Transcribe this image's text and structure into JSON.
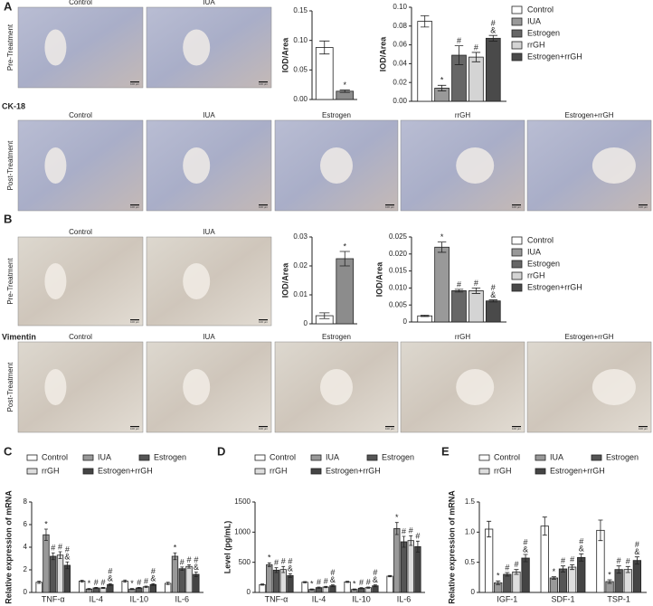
{
  "image_panels": {
    "A": {
      "letter": "A",
      "marker": "CK-18",
      "pre_label": "Pre-Treatment",
      "post_label": "Post-Treatment",
      "pre_images": [
        "Control",
        "IUA"
      ],
      "post_images": [
        "Control",
        "IUA",
        "Estrogen",
        "rrGH",
        "Estrogen+rrGH"
      ]
    },
    "B": {
      "letter": "B",
      "marker": "Vimentin",
      "pre_label": "Pre-Treatment",
      "post_label": "Post-Treatment",
      "pre_images": [
        "Control",
        "IUA"
      ],
      "post_images": [
        "Control",
        "IUA",
        "Estrogen",
        "rrGH",
        "Estrogen+rrGH"
      ]
    },
    "scale_bar": "100 μm"
  },
  "chart_data": [
    {
      "type": "bar",
      "ylabel": "IOD/Area",
      "categories": [
        null
      ],
      "series": [
        {
          "color": "#ffffff",
          "values": [
            0.088
          ],
          "errors": [
            0.011
          ],
          "annotations": [
            null
          ]
        },
        {
          "color": "#8c8c8c",
          "values": [
            0.014
          ],
          "errors": [
            0.002
          ],
          "annotations": [
            [
              "*"
            ]
          ]
        }
      ],
      "ylim": [
        0,
        0.15
      ],
      "yticks": [
        {
          "value": 0,
          "label": "0.00"
        },
        0.05,
        {
          "value": 0.1,
          "label": "0.10"
        },
        0.15
      ]
    },
    {
      "type": "bar",
      "ylabel": "IOD/Area",
      "categories": [
        null
      ],
      "legend": "right",
      "series": [
        {
          "name": "Control",
          "color": "#ffffff",
          "values": [
            0.085
          ],
          "errors": [
            0.006
          ],
          "annotations": [
            null
          ]
        },
        {
          "name": "IUA",
          "color": "#999999",
          "values": [
            0.014
          ],
          "errors": [
            0.003
          ],
          "annotations": [
            [
              "*"
            ]
          ]
        },
        {
          "name": "Estrogen",
          "color": "#666666",
          "values": [
            0.049
          ],
          "errors": [
            0.01
          ],
          "annotations": [
            [
              "#"
            ]
          ]
        },
        {
          "name": "rrGH",
          "color": "#d4d4d4",
          "values": [
            0.047
          ],
          "errors": [
            0.005
          ],
          "annotations": [
            [
              "#"
            ]
          ]
        },
        {
          "name": "Estrogen+rrGH",
          "color": "#4a4a4a",
          "values": [
            0.067
          ],
          "errors": [
            0.003
          ],
          "annotations": [
            [
              "#",
              "&"
            ]
          ]
        }
      ],
      "ylim": [
        0,
        0.1
      ],
      "yticks": [
        {
          "value": 0,
          "label": "0.00"
        },
        0.02,
        0.04,
        0.06,
        0.08,
        {
          "value": 0.1,
          "label": "0.10"
        }
      ]
    },
    {
      "type": "bar",
      "ylabel": "IOD/Area",
      "categories": [
        null
      ],
      "series": [
        {
          "color": "#ffffff",
          "values": [
            0.0028
          ],
          "errors": [
            0.001
          ],
          "annotations": [
            null
          ]
        },
        {
          "color": "#8c8c8c",
          "values": [
            0.0225
          ],
          "errors": [
            0.0025
          ],
          "annotations": [
            [
              "*"
            ]
          ]
        }
      ],
      "ylim": [
        0,
        0.03
      ],
      "yticks": [
        0,
        0.01,
        0.02,
        0.03
      ]
    },
    {
      "type": "bar",
      "ylabel": "IOD/Area",
      "categories": [
        null
      ],
      "legend": "right",
      "series": [
        {
          "name": "Control",
          "color": "#ffffff",
          "values": [
            0.0018
          ],
          "errors": [
            0.0002
          ],
          "annotations": [
            null
          ]
        },
        {
          "name": "IUA",
          "color": "#999999",
          "values": [
            0.022
          ],
          "errors": [
            0.0015
          ],
          "annotations": [
            [
              "*"
            ]
          ]
        },
        {
          "name": "Estrogen",
          "color": "#666666",
          "values": [
            0.0092
          ],
          "errors": [
            0.0004
          ],
          "annotations": [
            [
              "#"
            ]
          ]
        },
        {
          "name": "rrGH",
          "color": "#d4d4d4",
          "values": [
            0.0092
          ],
          "errors": [
            0.0008
          ],
          "annotations": [
            [
              "#"
            ]
          ]
        },
        {
          "name": "Estrogen+rrGH",
          "color": "#4a4a4a",
          "values": [
            0.0062
          ],
          "errors": [
            0.0003
          ],
          "annotations": [
            [
              "#",
              "&"
            ]
          ]
        }
      ],
      "ylim": [
        0,
        0.025
      ],
      "yticks": [
        0,
        0.005,
        {
          "value": 0.01,
          "label": "0.010"
        },
        0.015,
        {
          "value": 0.02,
          "label": "0.020"
        },
        0.025
      ]
    },
    {
      "type": "bar",
      "panel": "C",
      "ylabel": "Relative expression of mRNA",
      "legend": "top",
      "categories": [
        "TNF-α",
        "IL-4",
        "IL-10",
        "IL-6"
      ],
      "series": [
        {
          "name": "Control",
          "color": "#ffffff",
          "values": [
            0.9,
            1.0,
            1.0,
            0.8
          ],
          "errors": [
            0.1,
            0.08,
            0.1,
            0.1
          ],
          "annotations": [
            null,
            null,
            null,
            null
          ]
        },
        {
          "name": "IUA",
          "color": "#999999",
          "values": [
            5.1,
            0.3,
            0.3,
            3.2
          ],
          "errors": [
            0.5,
            0.05,
            0.05,
            0.3
          ],
          "annotations": [
            [
              "*"
            ],
            [
              "*"
            ],
            [
              "*"
            ],
            [
              "*"
            ]
          ]
        },
        {
          "name": "Estrogen",
          "color": "#555555",
          "values": [
            3.2,
            0.4,
            0.4,
            2.1
          ],
          "errors": [
            0.3,
            0.05,
            0.05,
            0.15
          ],
          "annotations": [
            [
              "#"
            ],
            [
              "#"
            ],
            [
              "#"
            ],
            [
              "#"
            ]
          ]
        },
        {
          "name": "rrGH",
          "color": "#dddddd",
          "values": [
            3.3,
            0.4,
            0.5,
            2.3
          ],
          "errors": [
            0.3,
            0.05,
            0.06,
            0.15
          ],
          "annotations": [
            [
              "#"
            ],
            [
              "#"
            ],
            [
              "#"
            ],
            [
              "#"
            ]
          ]
        },
        {
          "name": "Estrogen+rrGH",
          "color": "#444444",
          "values": [
            2.4,
            0.7,
            0.7,
            1.6
          ],
          "errors": [
            0.3,
            0.08,
            0.08,
            0.2
          ],
          "annotations": [
            [
              "#",
              "&"
            ],
            [
              "#",
              "&"
            ],
            [
              "#",
              "&"
            ],
            [
              "#",
              "&"
            ]
          ]
        }
      ],
      "ylim": [
        0,
        8
      ],
      "yticks": [
        0,
        2,
        4,
        6,
        8
      ]
    },
    {
      "type": "bar",
      "panel": "D",
      "ylabel": "Level (pg/mL)",
      "legend": "top",
      "categories": [
        "TNF-α",
        "IL-4",
        "IL-10",
        "IL-6"
      ],
      "series": [
        {
          "name": "Control",
          "color": "#ffffff",
          "values": [
            130,
            170,
            175,
            270
          ],
          "errors": [
            10,
            10,
            10,
            10
          ],
          "annotations": [
            null,
            null,
            null,
            null
          ]
        },
        {
          "name": "IUA",
          "color": "#999999",
          "values": [
            460,
            50,
            50,
            1060
          ],
          "errors": [
            30,
            8,
            8,
            100
          ],
          "annotations": [
            [
              "*"
            ],
            [
              "*"
            ],
            [
              "*"
            ],
            [
              "*"
            ]
          ]
        },
        {
          "name": "Estrogen",
          "color": "#555555",
          "values": [
            370,
            80,
            70,
            840
          ],
          "errors": [
            40,
            10,
            10,
            90
          ],
          "annotations": [
            [
              "#"
            ],
            [
              "#"
            ],
            [
              "#"
            ],
            [
              "#"
            ]
          ]
        },
        {
          "name": "rrGH",
          "color": "#dddddd",
          "values": [
            380,
            90,
            80,
            860
          ],
          "errors": [
            50,
            10,
            10,
            80
          ],
          "annotations": [
            [
              "#"
            ],
            [
              "#"
            ],
            [
              "#"
            ],
            [
              "#"
            ]
          ]
        },
        {
          "name": "Estrogen+rrGH",
          "color": "#444444",
          "values": [
            280,
            110,
            110,
            760
          ],
          "errors": [
            30,
            15,
            15,
            90
          ],
          "annotations": [
            [
              "#",
              "&"
            ],
            [
              "#",
              "&"
            ],
            [
              "#",
              "&"
            ],
            [
              "#"
            ]
          ]
        }
      ],
      "ylim": [
        0,
        1500
      ],
      "yticks": [
        0,
        500,
        1000,
        1500
      ]
    },
    {
      "type": "bar",
      "panel": "E",
      "ylabel": "Relative expression of mRNA",
      "legend": "top",
      "categories": [
        "IGF-1",
        "SDF-1",
        "TSP-1"
      ],
      "series": [
        {
          "name": "Control",
          "color": "#ffffff",
          "values": [
            1.05,
            1.1,
            1.03
          ],
          "errors": [
            0.13,
            0.15,
            0.17
          ],
          "annotations": [
            null,
            null,
            null
          ]
        },
        {
          "name": "IUA",
          "color": "#999999",
          "values": [
            0.16,
            0.24,
            0.18
          ],
          "errors": [
            0.03,
            0.02,
            0.03
          ],
          "annotations": [
            [
              "*"
            ],
            [
              "*"
            ],
            [
              "*"
            ]
          ]
        },
        {
          "name": "Estrogen",
          "color": "#555555",
          "values": [
            0.3,
            0.39,
            0.38
          ],
          "errors": [
            0.03,
            0.05,
            0.06
          ],
          "annotations": [
            [
              "#"
            ],
            [
              "#"
            ],
            [
              "#"
            ]
          ]
        },
        {
          "name": "rrGH",
          "color": "#dddddd",
          "values": [
            0.34,
            0.42,
            0.38
          ],
          "errors": [
            0.04,
            0.04,
            0.05
          ],
          "annotations": [
            [
              "#"
            ],
            [
              "#"
            ],
            [
              "#"
            ]
          ]
        },
        {
          "name": "Estrogen+rrGH",
          "color": "#444444",
          "values": [
            0.57,
            0.58,
            0.53
          ],
          "errors": [
            0.06,
            0.06,
            0.06
          ],
          "annotations": [
            [
              "#",
              "&"
            ],
            [
              "#",
              "&"
            ],
            [
              "#",
              "&"
            ]
          ]
        }
      ],
      "ylim": [
        0,
        1.5
      ],
      "yticks": [
        0,
        0.5,
        {
          "value": 1,
          "label": "1.0"
        },
        1.5
      ]
    }
  ]
}
